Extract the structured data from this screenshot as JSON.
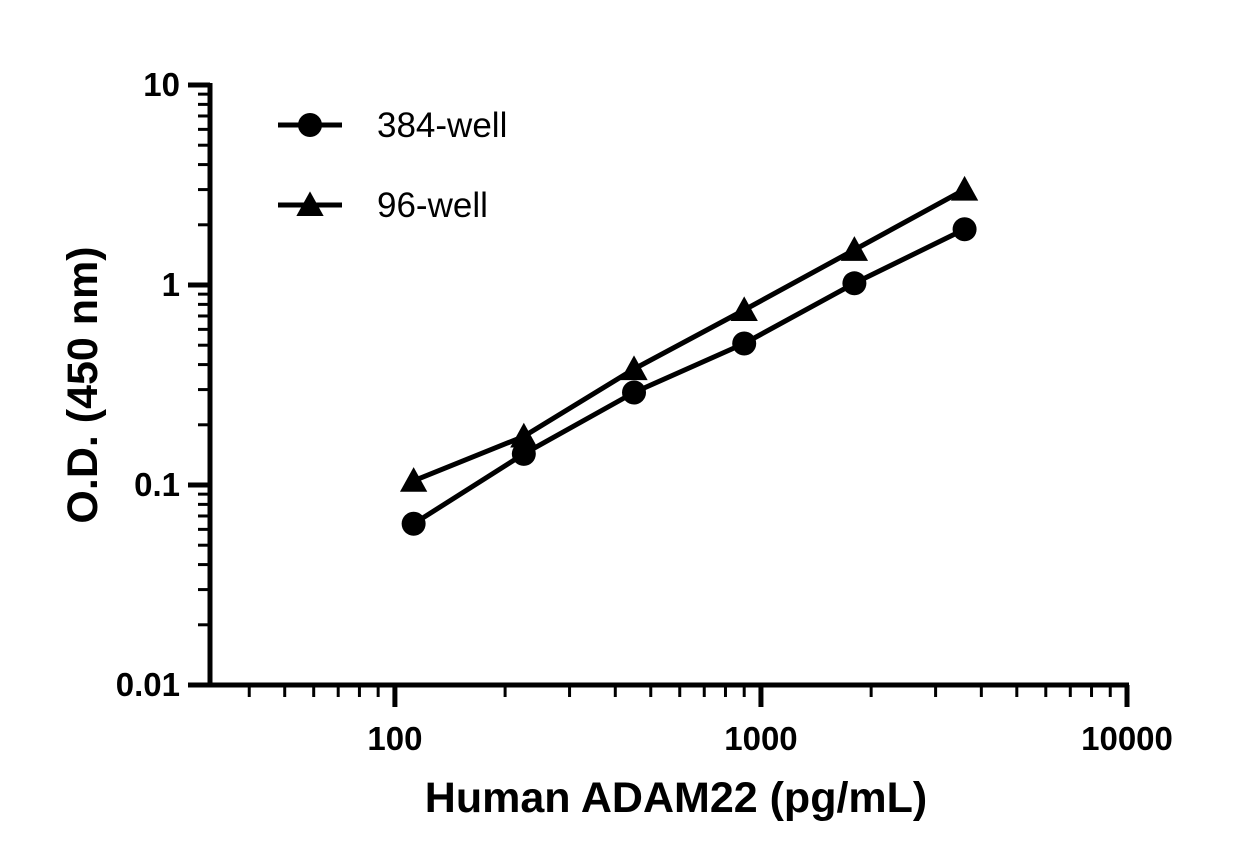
{
  "chart_data": {
    "type": "line",
    "xlabel": "Human ADAM22 (pg/mL)",
    "ylabel": "O.D. (450 nm)",
    "x_scale": "log",
    "y_scale": "log",
    "xlim": [
      31.25,
      10000
    ],
    "ylim": [
      0.01,
      10
    ],
    "x_ticks": [
      "100",
      "1000",
      "10000"
    ],
    "y_ticks": [
      "0.01",
      "0.1",
      "1",
      "10"
    ],
    "grid": false,
    "legend_position": "top-left",
    "series": [
      {
        "name": "384-well",
        "marker": "circle",
        "x": [
          112.5,
          225,
          450,
          900,
          1800,
          3600
        ],
        "y": [
          0.064,
          0.143,
          0.29,
          0.51,
          1.02,
          1.9
        ]
      },
      {
        "name": "96-well",
        "marker": "triangle",
        "x": [
          112.5,
          225,
          450,
          900,
          1800,
          3600
        ],
        "y": [
          0.105,
          0.175,
          0.38,
          0.75,
          1.5,
          3.0
        ]
      }
    ],
    "colors": {
      "line": "#000000",
      "marker": "#000000"
    }
  }
}
